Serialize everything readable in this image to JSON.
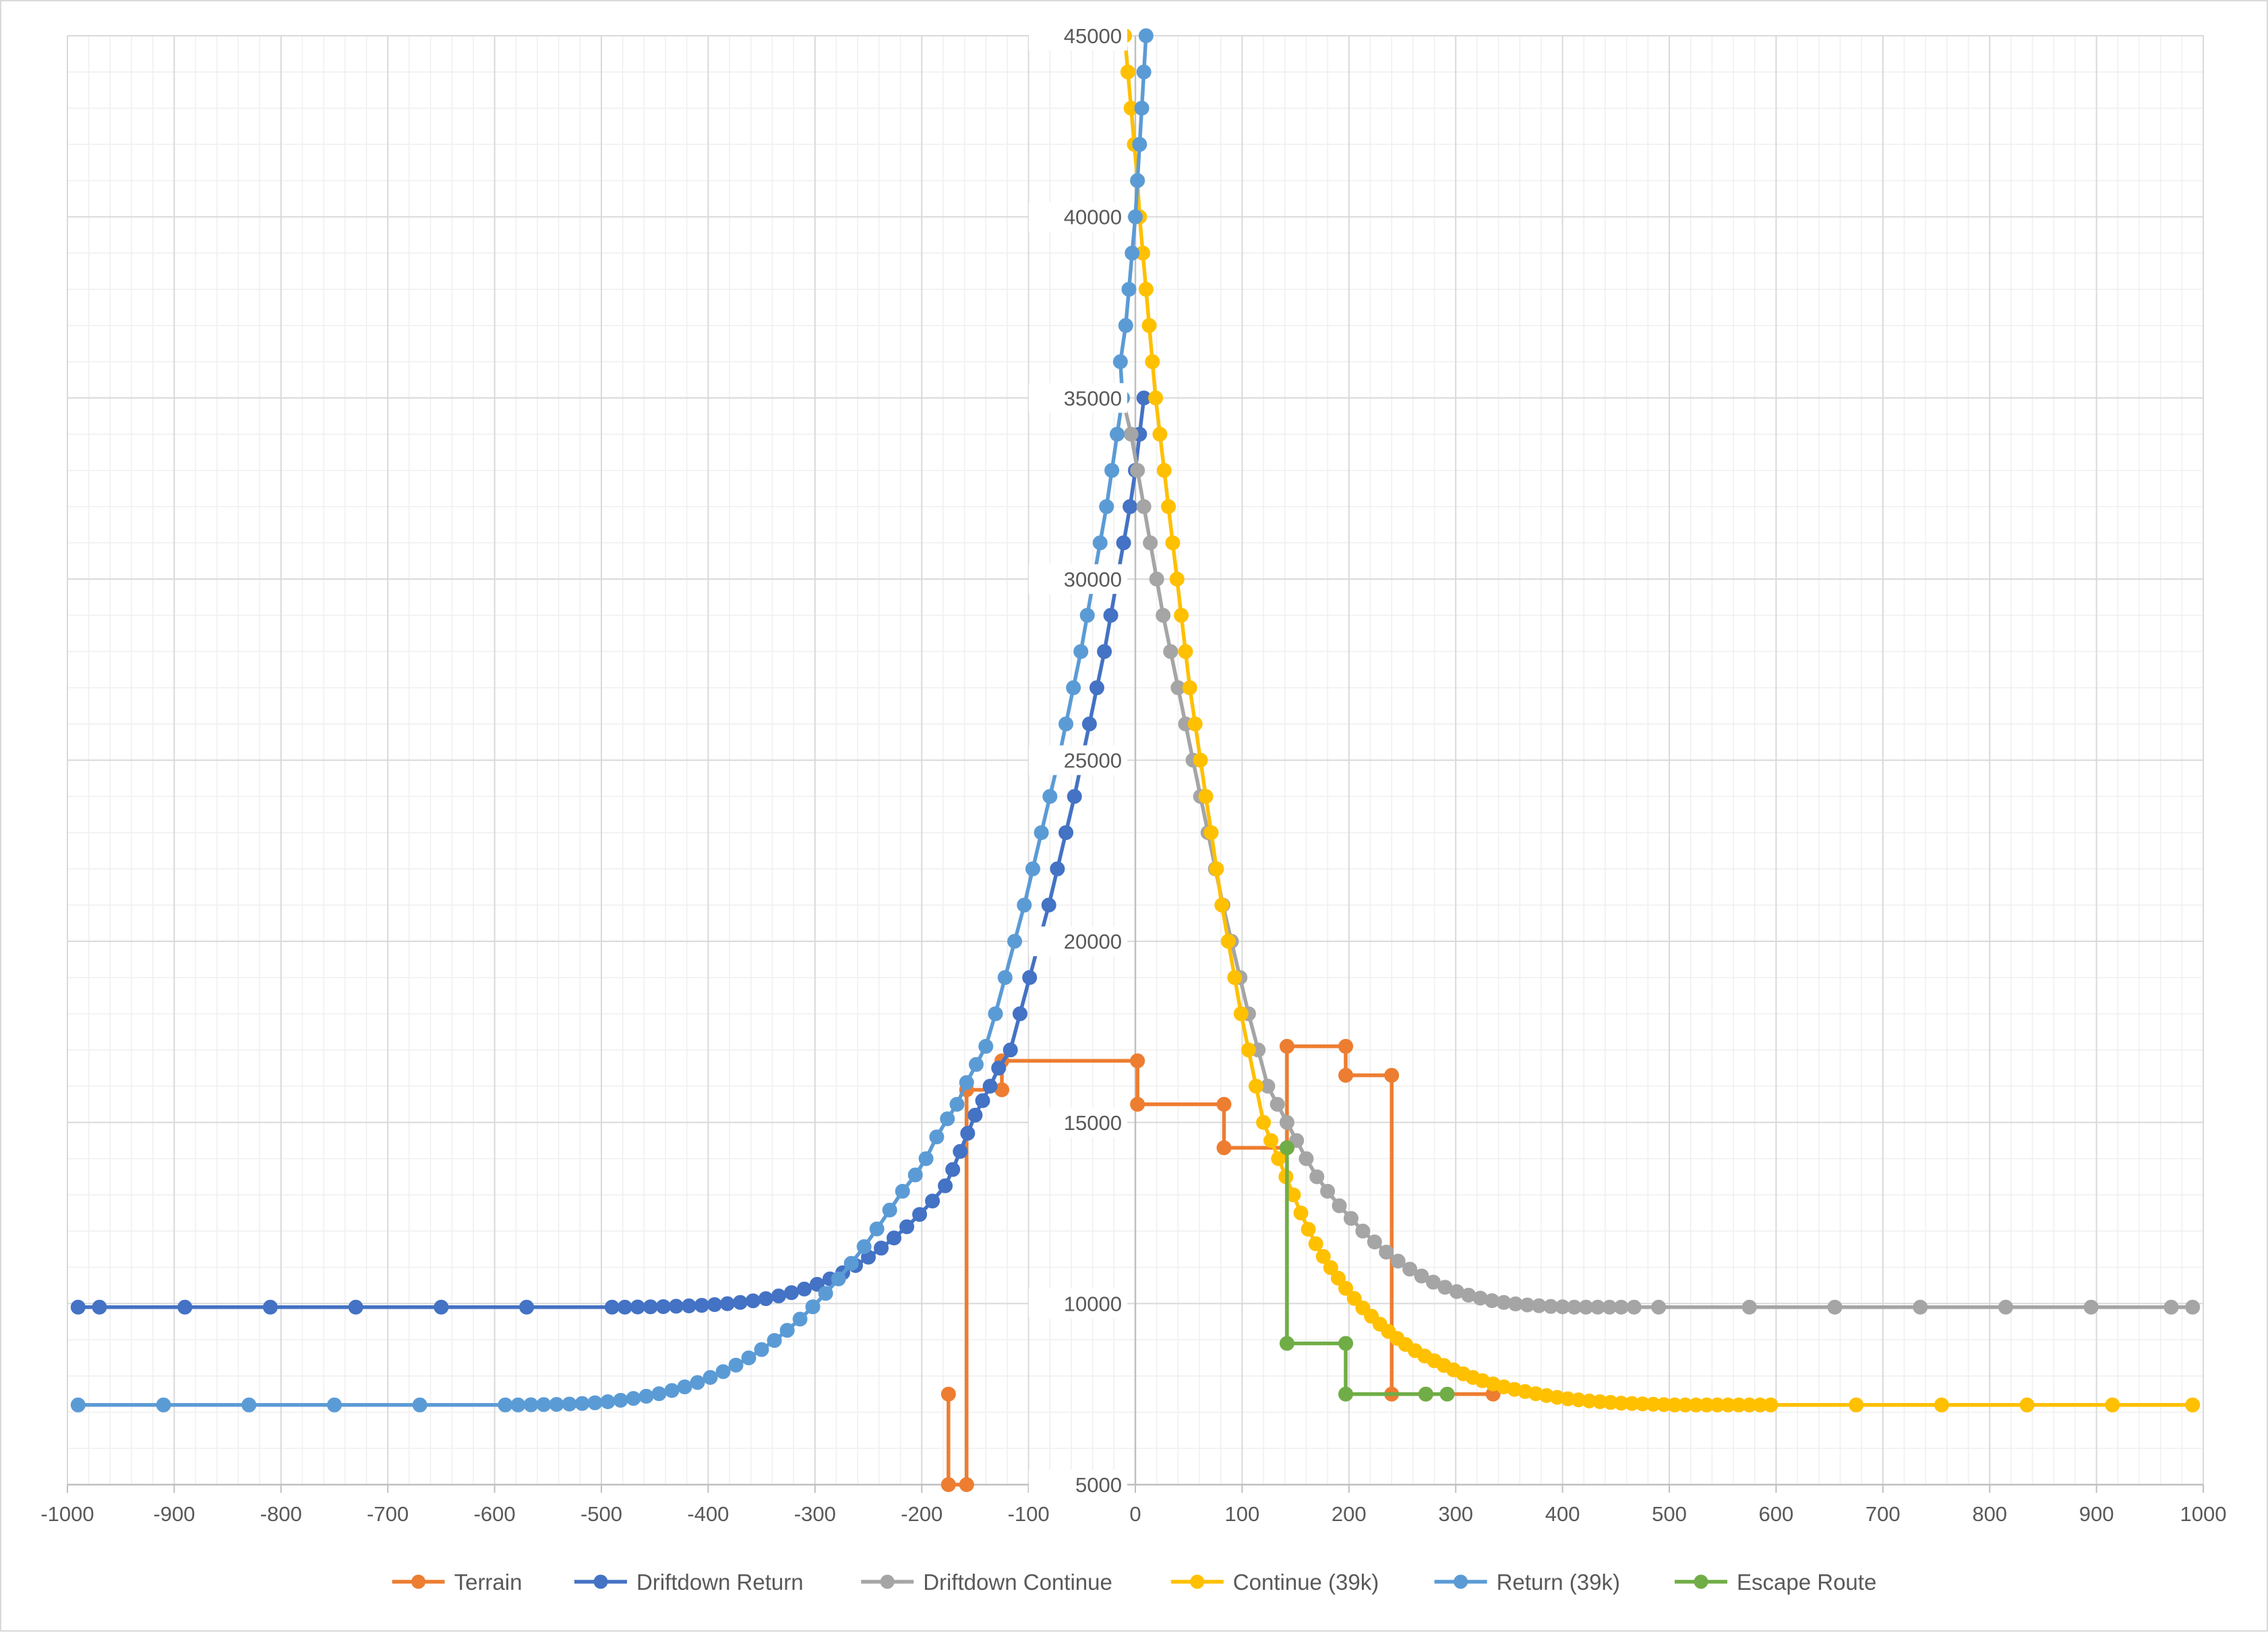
{
  "chart_data": {
    "type": "line",
    "title": "",
    "xlabel": "",
    "ylabel": "",
    "xlim": [
      -1000,
      1000
    ],
    "ylim": [
      5000,
      45000
    ],
    "x_ticks": [
      -1000,
      -900,
      -800,
      -700,
      -600,
      -500,
      -400,
      -300,
      -200,
      -100,
      0,
      100,
      200,
      300,
      400,
      500,
      600,
      700,
      800,
      900,
      1000
    ],
    "y_ticks": [
      5000,
      10000,
      15000,
      20000,
      25000,
      30000,
      35000,
      40000,
      45000
    ],
    "grid": true,
    "minor_grid": true,
    "legend_position": "bottom",
    "series": [
      {
        "name": "Terrain",
        "color": "#ED7D31",
        "points": [
          [
            -175,
            7500
          ],
          [
            -175,
            5000
          ],
          [
            -158,
            5000
          ],
          [
            -158,
            15900
          ],
          [
            -125,
            15900
          ],
          [
            -125,
            16700
          ],
          [
            2,
            16700
          ],
          [
            2,
            15500
          ],
          [
            83,
            15500
          ],
          [
            83,
            14300
          ],
          [
            142,
            14300
          ],
          [
            142,
            17100
          ],
          [
            197,
            17100
          ],
          [
            197,
            16300
          ],
          [
            240,
            16300
          ],
          [
            240,
            7500
          ],
          [
            272,
            7500
          ],
          [
            335,
            7500
          ]
        ]
      },
      {
        "name": "Driftdown Return",
        "color": "#4472C4",
        "points": [
          [
            -990,
            9900
          ],
          [
            -970,
            9900
          ],
          [
            -890,
            9900
          ],
          [
            -810,
            9900
          ],
          [
            -730,
            9900
          ],
          [
            -650,
            9900
          ],
          [
            -570,
            9900
          ],
          [
            -490,
            9900
          ],
          [
            -478,
            9900
          ],
          [
            -466,
            9905
          ],
          [
            -454,
            9910
          ],
          [
            -442,
            9915
          ],
          [
            -430,
            9925
          ],
          [
            -418,
            9935
          ],
          [
            -406,
            9950
          ],
          [
            -394,
            9970
          ],
          [
            -382,
            9995
          ],
          [
            -370,
            10030
          ],
          [
            -358,
            10075
          ],
          [
            -346,
            10135
          ],
          [
            -334,
            10210
          ],
          [
            -322,
            10300
          ],
          [
            -310,
            10400
          ],
          [
            -298,
            10530
          ],
          [
            -286,
            10680
          ],
          [
            -274,
            10850
          ],
          [
            -262,
            11050
          ],
          [
            -250,
            11280
          ],
          [
            -238,
            11530
          ],
          [
            -226,
            11810
          ],
          [
            -214,
            12120
          ],
          [
            -202,
            12460
          ],
          [
            -190,
            12830
          ],
          [
            -178,
            13250
          ],
          [
            -171,
            13700
          ],
          [
            -164,
            14200
          ],
          [
            -157,
            14700
          ],
          [
            -150,
            15200
          ],
          [
            -143,
            15600
          ],
          [
            -136,
            16000
          ],
          [
            -128,
            16500
          ],
          [
            -117,
            17000
          ],
          [
            -108,
            18000
          ],
          [
            -99,
            19000
          ],
          [
            -90,
            20000
          ],
          [
            -81,
            21000
          ],
          [
            -73,
            22000
          ],
          [
            -65,
            23000
          ],
          [
            -57,
            24000
          ],
          [
            -50,
            25000
          ],
          [
            -43,
            26000
          ],
          [
            -36,
            27000
          ],
          [
            -29,
            28000
          ],
          [
            -23,
            29000
          ],
          [
            -17,
            30000
          ],
          [
            -11,
            31000
          ],
          [
            -5,
            32000
          ],
          [
            0,
            33000
          ],
          [
            4,
            34000
          ],
          [
            8,
            35000
          ]
        ]
      },
      {
        "name": "Driftdown Continue",
        "color": "#A5A5A5",
        "points": [
          [
            -12,
            35000
          ],
          [
            -4,
            34000
          ],
          [
            2,
            33000
          ],
          [
            8,
            32000
          ],
          [
            14,
            31000
          ],
          [
            20,
            30000
          ],
          [
            26,
            29000
          ],
          [
            33,
            28000
          ],
          [
            40,
            27000
          ],
          [
            47,
            26000
          ],
          [
            54,
            25000
          ],
          [
            61,
            24000
          ],
          [
            68,
            23000
          ],
          [
            75,
            22000
          ],
          [
            82,
            21000
          ],
          [
            90,
            20000
          ],
          [
            98,
            19000
          ],
          [
            106,
            18000
          ],
          [
            115,
            17000
          ],
          [
            124,
            16000
          ],
          [
            133,
            15500
          ],
          [
            142,
            15000
          ],
          [
            151,
            14500
          ],
          [
            160,
            14000
          ],
          [
            170,
            13500
          ],
          [
            180,
            13100
          ],
          [
            191,
            12700
          ],
          [
            202,
            12350
          ],
          [
            213,
            12000
          ],
          [
            224,
            11700
          ],
          [
            235,
            11420
          ],
          [
            246,
            11170
          ],
          [
            257,
            10950
          ],
          [
            268,
            10760
          ],
          [
            279,
            10590
          ],
          [
            290,
            10450
          ],
          [
            301,
            10330
          ],
          [
            312,
            10230
          ],
          [
            323,
            10150
          ],
          [
            334,
            10080
          ],
          [
            345,
            10030
          ],
          [
            356,
            9990
          ],
          [
            367,
            9960
          ],
          [
            378,
            9940
          ],
          [
            389,
            9920
          ],
          [
            400,
            9910
          ],
          [
            411,
            9900
          ],
          [
            422,
            9900
          ],
          [
            433,
            9900
          ],
          [
            444,
            9900
          ],
          [
            455,
            9900
          ],
          [
            467,
            9900
          ],
          [
            490,
            9900
          ],
          [
            575,
            9900
          ],
          [
            655,
            9900
          ],
          [
            735,
            9900
          ],
          [
            815,
            9900
          ],
          [
            895,
            9900
          ],
          [
            970,
            9900
          ],
          [
            990,
            9900
          ]
        ]
      },
      {
        "name": "Continue (39k)",
        "color": "#FFC000",
        "points": [
          [
            -10,
            45000
          ],
          [
            -7,
            44000
          ],
          [
            -4,
            43000
          ],
          [
            -1,
            42000
          ],
          [
            2,
            41000
          ],
          [
            4,
            40000
          ],
          [
            7,
            39000
          ],
          [
            10,
            38000
          ],
          [
            13,
            37000
          ],
          [
            16,
            36000
          ],
          [
            19,
            35000
          ],
          [
            23,
            34000
          ],
          [
            27,
            33000
          ],
          [
            31,
            32000
          ],
          [
            35,
            31000
          ],
          [
            39,
            30000
          ],
          [
            43,
            29000
          ],
          [
            47,
            28000
          ],
          [
            51,
            27000
          ],
          [
            56,
            26000
          ],
          [
            61,
            25000
          ],
          [
            66,
            24000
          ],
          [
            71,
            23000
          ],
          [
            76,
            22000
          ],
          [
            81,
            21000
          ],
          [
            87,
            20000
          ],
          [
            93,
            19000
          ],
          [
            99,
            18000
          ],
          [
            106,
            17000
          ],
          [
            113,
            16000
          ],
          [
            120,
            15000
          ],
          [
            127,
            14500
          ],
          [
            134,
            14000
          ],
          [
            141,
            13500
          ],
          [
            148,
            13000
          ],
          [
            155,
            12500
          ],
          [
            162,
            12050
          ],
          [
            169,
            11650
          ],
          [
            176,
            11300
          ],
          [
            183,
            10990
          ],
          [
            190,
            10700
          ],
          [
            197,
            10420
          ],
          [
            205,
            10140
          ],
          [
            213,
            9880
          ],
          [
            221,
            9650
          ],
          [
            229,
            9430
          ],
          [
            237,
            9230
          ],
          [
            245,
            9040
          ],
          [
            253,
            8870
          ],
          [
            262,
            8700
          ],
          [
            271,
            8550
          ],
          [
            280,
            8420
          ],
          [
            289,
            8290
          ],
          [
            298,
            8170
          ],
          [
            307,
            8060
          ],
          [
            316,
            7960
          ],
          [
            325,
            7870
          ],
          [
            335,
            7780
          ],
          [
            345,
            7700
          ],
          [
            355,
            7630
          ],
          [
            365,
            7570
          ],
          [
            375,
            7510
          ],
          [
            385,
            7460
          ],
          [
            395,
            7410
          ],
          [
            405,
            7370
          ],
          [
            415,
            7340
          ],
          [
            425,
            7310
          ],
          [
            435,
            7290
          ],
          [
            445,
            7270
          ],
          [
            455,
            7250
          ],
          [
            465,
            7240
          ],
          [
            475,
            7230
          ],
          [
            485,
            7220
          ],
          [
            495,
            7210
          ],
          [
            505,
            7200
          ],
          [
            515,
            7200
          ],
          [
            525,
            7200
          ],
          [
            535,
            7200
          ],
          [
            545,
            7200
          ],
          [
            555,
            7200
          ],
          [
            565,
            7200
          ],
          [
            575,
            7200
          ],
          [
            585,
            7200
          ],
          [
            595,
            7200
          ],
          [
            675,
            7200
          ],
          [
            755,
            7200
          ],
          [
            835,
            7200
          ],
          [
            915,
            7200
          ],
          [
            990,
            7200
          ]
        ]
      },
      {
        "name": "Return (39k)",
        "color": "#5B9BD5",
        "points": [
          [
            -990,
            7200
          ],
          [
            -910,
            7200
          ],
          [
            -830,
            7200
          ],
          [
            -750,
            7200
          ],
          [
            -670,
            7200
          ],
          [
            -590,
            7200
          ],
          [
            -578,
            7200
          ],
          [
            -566,
            7205
          ],
          [
            -554,
            7210
          ],
          [
            -542,
            7215
          ],
          [
            -530,
            7225
          ],
          [
            -518,
            7240
          ],
          [
            -506,
            7260
          ],
          [
            -494,
            7290
          ],
          [
            -482,
            7330
          ],
          [
            -470,
            7380
          ],
          [
            -458,
            7440
          ],
          [
            -446,
            7510
          ],
          [
            -434,
            7600
          ],
          [
            -422,
            7700
          ],
          [
            -410,
            7820
          ],
          [
            -398,
            7960
          ],
          [
            -386,
            8120
          ],
          [
            -374,
            8300
          ],
          [
            -362,
            8500
          ],
          [
            -350,
            8730
          ],
          [
            -338,
            8980
          ],
          [
            -326,
            9260
          ],
          [
            -314,
            9570
          ],
          [
            -302,
            9910
          ],
          [
            -290,
            10280
          ],
          [
            -278,
            10680
          ],
          [
            -266,
            11110
          ],
          [
            -254,
            11570
          ],
          [
            -242,
            12060
          ],
          [
            -230,
            12580
          ],
          [
            -218,
            13100
          ],
          [
            -206,
            13550
          ],
          [
            -196,
            14000
          ],
          [
            -186,
            14600
          ],
          [
            -176,
            15100
          ],
          [
            -167,
            15500
          ],
          [
            -158,
            16100
          ],
          [
            -149,
            16600
          ],
          [
            -140,
            17100
          ],
          [
            -131,
            18000
          ],
          [
            -122,
            19000
          ],
          [
            -113,
            20000
          ],
          [
            -104,
            21000
          ],
          [
            -96,
            22000
          ],
          [
            -88,
            23000
          ],
          [
            -80,
            24000
          ],
          [
            -72,
            25000
          ],
          [
            -65,
            26000
          ],
          [
            -58,
            27000
          ],
          [
            -51,
            28000
          ],
          [
            -45,
            29000
          ],
          [
            -39,
            30000
          ],
          [
            -33,
            31000
          ],
          [
            -27,
            32000
          ],
          [
            -22,
            33000
          ],
          [
            -17,
            34000
          ],
          [
            -12,
            35000
          ],
          [
            -14,
            36000
          ],
          [
            -9,
            37000
          ],
          [
            -6,
            38000
          ],
          [
            -3,
            39000
          ],
          [
            0,
            40000
          ],
          [
            2,
            41000
          ],
          [
            4,
            42000
          ],
          [
            6,
            43000
          ],
          [
            8,
            44000
          ],
          [
            10,
            45000
          ]
        ]
      },
      {
        "name": "Escape Route",
        "color": "#70AD47",
        "points": [
          [
            142,
            14300
          ],
          [
            142,
            8900
          ],
          [
            197,
            8900
          ],
          [
            197,
            7500
          ],
          [
            272,
            7500
          ],
          [
            292,
            7500
          ]
        ]
      }
    ]
  }
}
